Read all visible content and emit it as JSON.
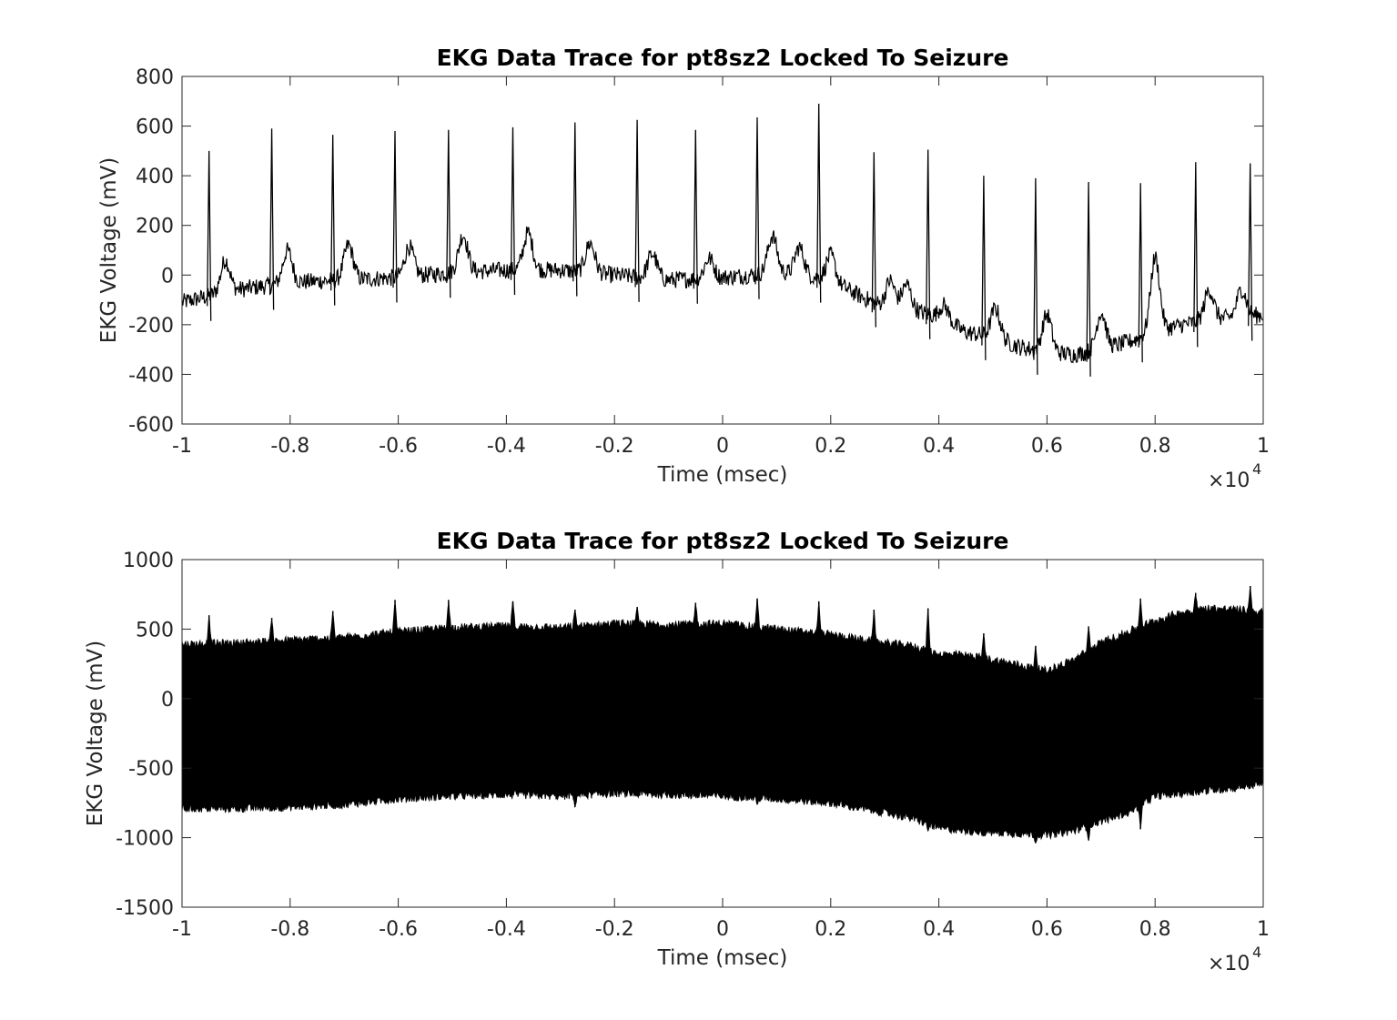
{
  "chart_data": [
    {
      "type": "line",
      "title": "EKG Data Trace for pt8sz2 Locked To Seizure",
      "xlabel": "Time (msec)",
      "ylabel": "EKG Voltage (mV)",
      "x_exponent_base": "×10",
      "x_exponent_power": "4",
      "xlim": [
        -1,
        1
      ],
      "ylim": [
        -600,
        800
      ],
      "x_ticks": [
        "-1",
        "-0.8",
        "-0.6",
        "-0.4",
        "-0.2",
        "0",
        "0.2",
        "0.4",
        "0.6",
        "0.8",
        "1"
      ],
      "y_ticks": [
        "-600",
        "-400",
        "-200",
        "0",
        "200",
        "400",
        "600",
        "800"
      ],
      "grid": false,
      "series_color": "#000000",
      "spikes": {
        "x": [
          -0.95,
          -0.834,
          -0.721,
          -0.606,
          -0.507,
          -0.388,
          -0.273,
          -0.158,
          -0.05,
          0.064,
          0.178,
          0.28,
          0.38,
          0.483,
          0.579,
          0.677,
          0.773,
          0.875,
          0.976
        ],
        "peak": [
          500,
          590,
          565,
          580,
          585,
          595,
          615,
          625,
          585,
          635,
          690,
          495,
          505,
          400,
          390,
          375,
          370,
          455,
          450
        ]
      },
      "baseline": {
        "x": [
          -1,
          -0.9,
          -0.8,
          -0.7,
          -0.6,
          -0.5,
          -0.4,
          -0.3,
          -0.2,
          -0.1,
          0,
          0.1,
          0.15,
          0.2,
          0.25,
          0.3,
          0.35,
          0.4,
          0.45,
          0.5,
          0.55,
          0.6,
          0.65,
          0.7,
          0.75,
          0.8,
          0.85,
          0.9,
          0.95,
          1
        ],
        "y": [
          -110,
          -60,
          -30,
          -20,
          -10,
          10,
          20,
          20,
          0,
          -20,
          -10,
          10,
          0,
          -20,
          -80,
          -130,
          -140,
          -170,
          -230,
          -250,
          -290,
          -310,
          -320,
          -300,
          -270,
          -230,
          -200,
          -180,
          -170,
          -160
        ]
      },
      "waves": {
        "x": [
          -0.92,
          -0.805,
          -0.692,
          -0.58,
          -0.48,
          -0.36,
          -0.245,
          -0.13,
          -0.025,
          0.092,
          0.142,
          0.2,
          0.31,
          0.34,
          0.41,
          0.505,
          0.6,
          0.7,
          0.8,
          0.9,
          0.96
        ],
        "amp": [
          130,
          130,
          140,
          120,
          150,
          150,
          120,
          100,
          80,
          150,
          110,
          100,
          110,
          100,
          60,
          120,
          150,
          150,
          300,
          120,
          110
        ]
      }
    },
    {
      "type": "line",
      "title": "EKG Data Trace for pt8sz2 Locked To Seizure",
      "xlabel": "Time (msec)",
      "ylabel": "EKG Voltage (mV)",
      "x_exponent_base": "×10",
      "x_exponent_power": "4",
      "xlim": [
        -1,
        1
      ],
      "ylim": [
        -1500,
        1000
      ],
      "x_ticks": [
        "-1",
        "-0.8",
        "-0.6",
        "-0.4",
        "-0.2",
        "0",
        "0.2",
        "0.4",
        "0.6",
        "0.8",
        "1"
      ],
      "y_ticks": [
        "-1500",
        "-1000",
        "-500",
        "0",
        "500",
        "1000"
      ],
      "grid": false,
      "series_color": "#000000",
      "envelope": {
        "x": [
          -1,
          -0.9,
          -0.8,
          -0.7,
          -0.6,
          -0.5,
          -0.4,
          -0.3,
          -0.2,
          -0.1,
          0,
          0.1,
          0.2,
          0.3,
          0.35,
          0.4,
          0.45,
          0.5,
          0.55,
          0.6,
          0.65,
          0.7,
          0.75,
          0.8,
          0.85,
          0.9,
          0.95,
          1
        ],
        "upper": [
          390,
          400,
          420,
          440,
          480,
          510,
          520,
          510,
          540,
          530,
          540,
          500,
          460,
          400,
          380,
          320,
          310,
          280,
          240,
          200,
          280,
          400,
          480,
          560,
          620,
          650,
          640,
          620
        ],
        "lower": [
          -790,
          -790,
          -780,
          -760,
          -720,
          -700,
          -690,
          -700,
          -680,
          -690,
          -700,
          -720,
          -750,
          -820,
          -860,
          -930,
          -950,
          -960,
          -970,
          -980,
          -950,
          -880,
          -820,
          -700,
          -680,
          -660,
          -640,
          -610
        ]
      },
      "spikes": {
        "x": [
          -0.95,
          -0.834,
          -0.721,
          -0.606,
          -0.507,
          -0.388,
          -0.273,
          -0.158,
          -0.05,
          0.064,
          0.178,
          0.28,
          0.38,
          0.483,
          0.579,
          0.677,
          0.773,
          0.875,
          0.976
        ],
        "upper_peak": [
          600,
          580,
          630,
          710,
          710,
          700,
          640,
          660,
          690,
          720,
          700,
          640,
          650,
          470,
          380,
          520,
          720,
          760,
          810
        ],
        "lower_peak": [
          -800,
          -810,
          -780,
          -640,
          -660,
          -660,
          -780,
          -700,
          -640,
          -760,
          -680,
          -800,
          -950,
          -990,
          -1040,
          -1020,
          -940,
          -570,
          -400
        ]
      }
    }
  ]
}
